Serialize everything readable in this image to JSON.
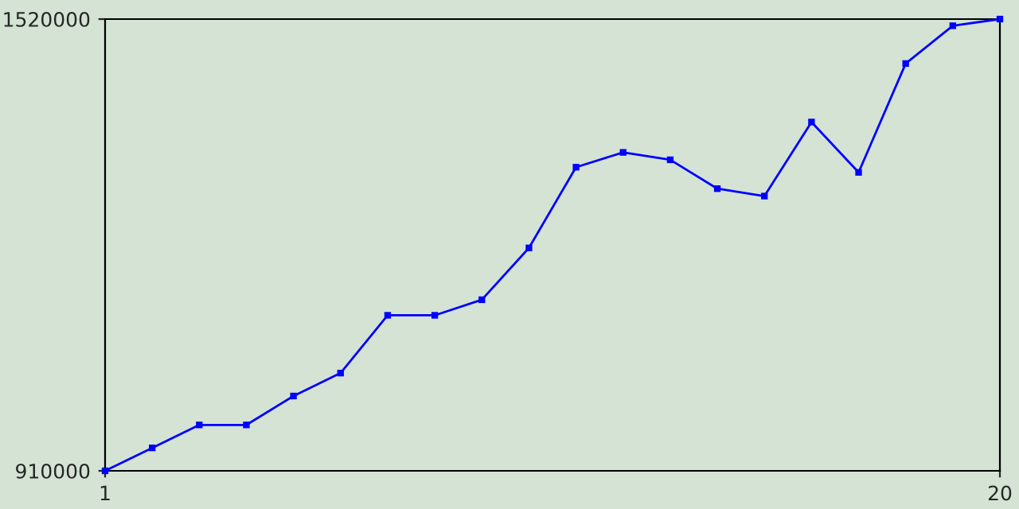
{
  "chart_data": {
    "type": "line",
    "x": [
      1,
      2,
      3,
      4,
      5,
      6,
      7,
      8,
      9,
      10,
      11,
      12,
      13,
      14,
      15,
      16,
      17,
      18,
      19,
      20
    ],
    "series": [
      {
        "color": "#0000ff",
        "values": [
          910000,
          941000,
          972000,
          972000,
          1011000,
          1042000,
          1120000,
          1120000,
          1141000,
          1211000,
          1320000,
          1340000,
          1330000,
          1291000,
          1281000,
          1381000,
          1313000,
          1460000,
          1511000,
          1520000
        ]
      }
    ],
    "xlim": [
      1,
      20
    ],
    "xticks": [
      1,
      20
    ],
    "ylim": [
      910000,
      1520000
    ],
    "yticks": [
      910000,
      1520000
    ],
    "legend": false,
    "marker": "square",
    "line_style": "solid"
  }
}
